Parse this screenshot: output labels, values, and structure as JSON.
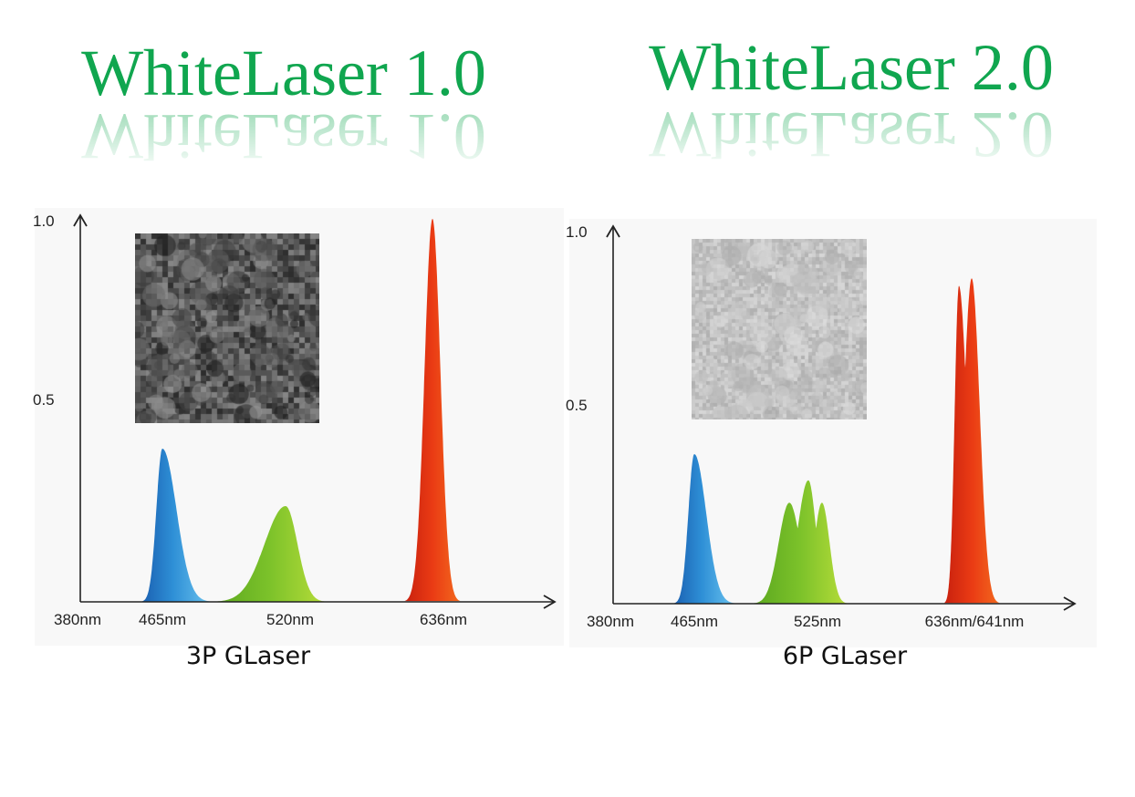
{
  "colors": {
    "title": "#10a64f",
    "blue": "#2e8fd6",
    "green": "#7cc22a",
    "red": "#ea3b14",
    "axis": "#222222"
  },
  "panels": [
    {
      "title": "WhiteLaser 1.0",
      "caption": "3P GLaser",
      "chart_data": {
        "type": "area",
        "title": "WhiteLaser 1.0",
        "xlabel": "",
        "ylabel": "",
        "y_ticks": [
          "1.0",
          "0.5"
        ],
        "x_ticks": [
          "380nm",
          "465nm",
          "520nm",
          "636nm"
        ],
        "ylim": [
          0,
          1.0
        ],
        "series": [
          {
            "color": "blue",
            "peaks": [
              {
                "x": 465,
                "y": 0.4,
                "half_width": 10
              }
            ]
          },
          {
            "color": "green",
            "peaks": [
              {
                "x": 520,
                "y": 0.25,
                "half_width": 15
              }
            ]
          },
          {
            "color": "red",
            "peaks": [
              {
                "x": 636,
                "y": 1.0,
                "half_width": 10
              }
            ]
          }
        ]
      },
      "inset": {
        "icon": "speckle-pattern-dark",
        "base": "#5a5a5a"
      }
    },
    {
      "title": "WhiteLaser 2.0",
      "caption": "6P GLaser",
      "chart_data": {
        "type": "area",
        "title": "WhiteLaser 2.0",
        "xlabel": "",
        "ylabel": "",
        "y_ticks": [
          "1.0",
          "0.5"
        ],
        "x_ticks": [
          "380nm",
          "465nm",
          "525nm",
          "636nm/641nm"
        ],
        "ylim": [
          0,
          1.0
        ],
        "series": [
          {
            "color": "blue",
            "peaks": [
              {
                "x": 465,
                "y": 0.4,
                "half_width": 10
              }
            ]
          },
          {
            "color": "green",
            "peaks": [
              {
                "x": 515,
                "y": 0.27,
                "half_width": 9
              },
              {
                "x": 525,
                "y": 0.33,
                "half_width": 9
              },
              {
                "x": 535,
                "y": 0.27,
                "half_width": 9
              }
            ]
          },
          {
            "color": "red",
            "peaks": [
              {
                "x": 636,
                "y": 0.85,
                "half_width": 5
              },
              {
                "x": 641,
                "y": 0.87,
                "half_width": 5
              }
            ]
          }
        ]
      },
      "inset": {
        "icon": "speckle-pattern-light",
        "base": "#c4c4c4"
      }
    }
  ]
}
